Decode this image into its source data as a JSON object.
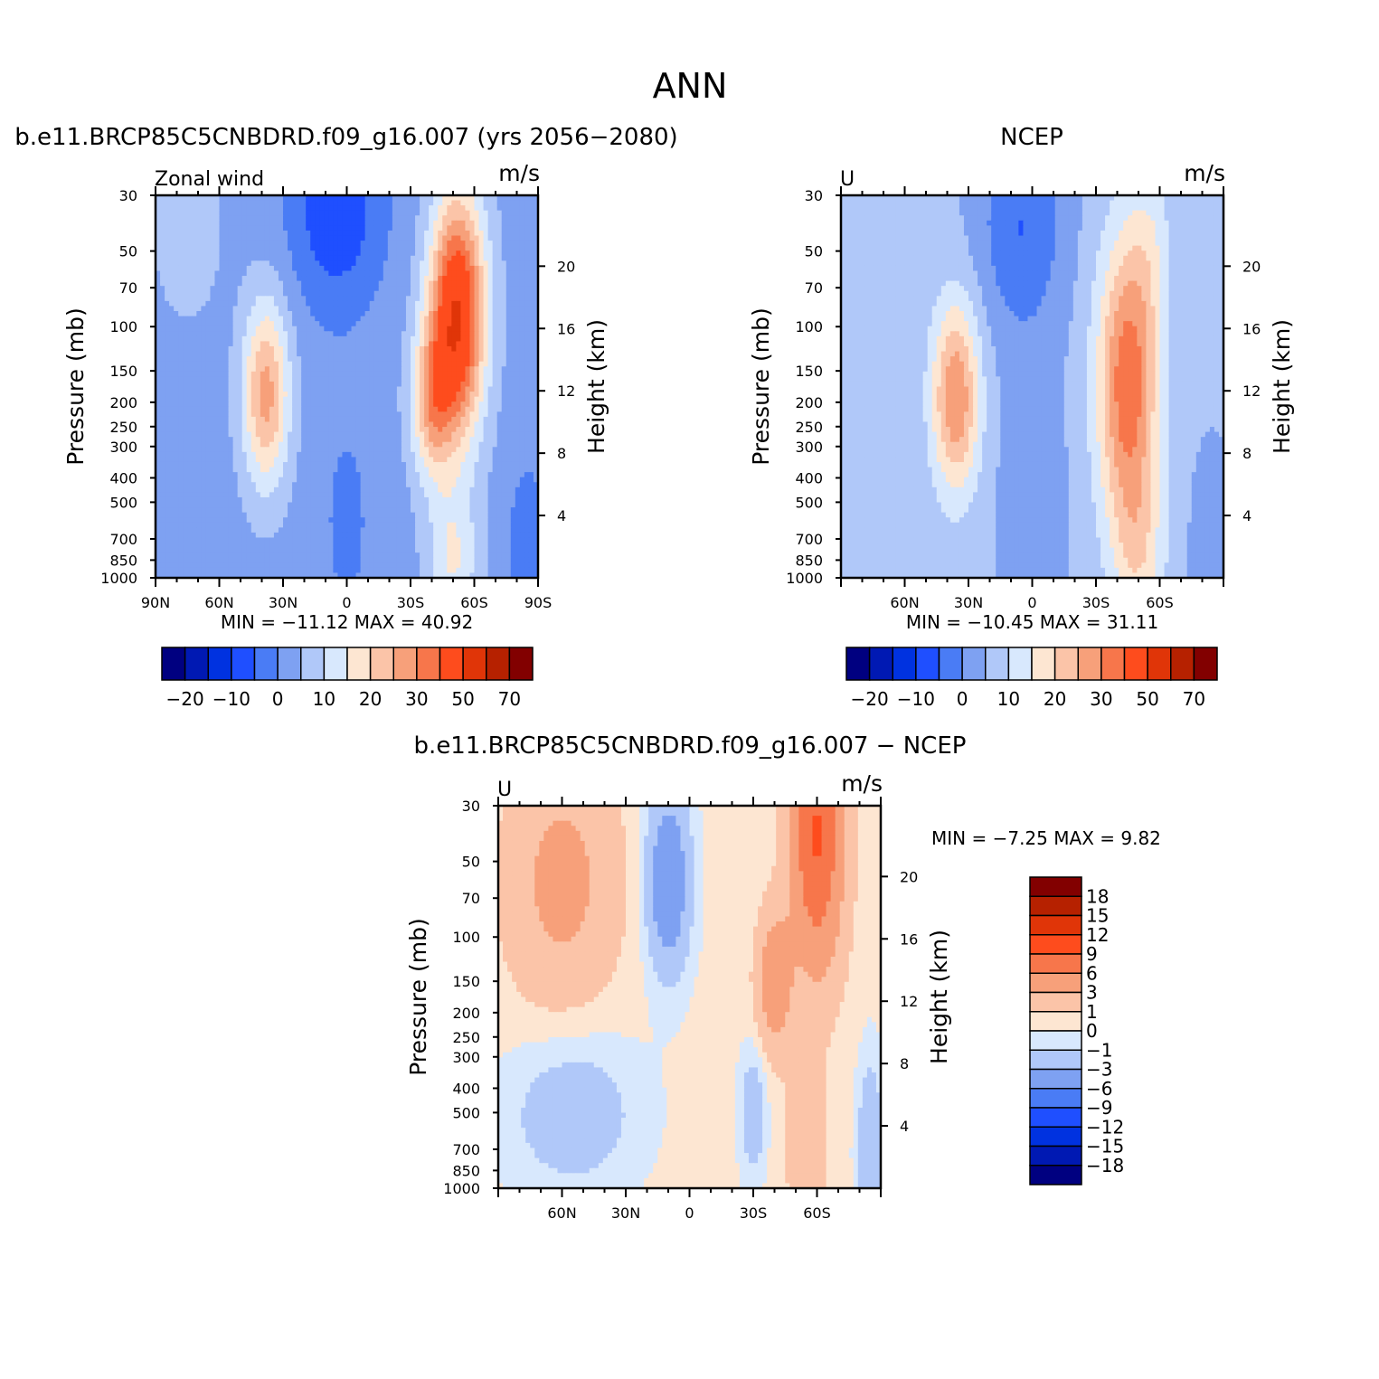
{
  "main_title": "ANN",
  "levels_mb": [
    30,
    50,
    70,
    100,
    150,
    200,
    250,
    300,
    400,
    500,
    700,
    850,
    1000
  ],
  "height_ticks_km": [
    4,
    8,
    12,
    16,
    20
  ],
  "left_axis_label": "Pressure (mb)",
  "right_axis_label": "Height (km)",
  "units": "m/s",
  "colors": {
    "abs": [
      "#000080",
      "#0019b3",
      "#0032e0",
      "#1f4fff",
      "#4a7cf5",
      "#7ea1f2",
      "#b0c8f9",
      "#d8e8fd",
      "#fde6d2",
      "#fbc4a8",
      "#f7a07a",
      "#f7764b",
      "#fe4c1d",
      "#e03508",
      "#b62100",
      "#820000"
    ],
    "diff": [
      "#000080",
      "#0019b3",
      "#0032e0",
      "#1f4fff",
      "#4a7cf5",
      "#7ea1f2",
      "#b0c8f9",
      "#d8e8fd",
      "#fde6d2",
      "#fbc4a8",
      "#f7a07a",
      "#f7764b",
      "#fe4c1d",
      "#e03508",
      "#b62100",
      "#820000"
    ]
  },
  "panels": [
    {
      "id": "model",
      "title": "b.e11.BRCP85C5CNBDRD.f09_g16.007 (yrs 2056-2080)",
      "var_label": "Zonal wind",
      "units": "m/s",
      "x_tick_labels": [
        "90N",
        "60N",
        "30N",
        "0",
        "30S",
        "60S",
        "90S"
      ],
      "min_label": "MIN =",
      "min_value": "-11.12",
      "max_label": "MAX =",
      "max_value": "40.92",
      "colorbar_labels": [
        "-20",
        "-10",
        "0",
        "10",
        "20",
        "30",
        "50",
        "70"
      ]
    },
    {
      "id": "obs",
      "title": "NCEP",
      "var_label": "U",
      "units": "m/s",
      "x_tick_labels": [
        "60N",
        "30N",
        "0",
        "30S",
        "60S"
      ],
      "min_label": "MIN =",
      "min_value": "-10.45",
      "max_label": "MAX =",
      "max_value": "31.11",
      "colorbar_labels": [
        "-20",
        "-10",
        "0",
        "10",
        "20",
        "30",
        "50",
        "70"
      ]
    },
    {
      "id": "diff",
      "title": "b.e11.BRCP85C5CNBDRD.f09_g16.007 - NCEP",
      "var_label": "U",
      "units": "m/s",
      "x_tick_labels": [
        "60N",
        "30N",
        "0",
        "30S",
        "60S"
      ],
      "min_label": "MIN =",
      "min_value": "-7.25",
      "max_label": "MAX =",
      "max_value": "9.82",
      "colorbar_labels": [
        "18",
        "15",
        "12",
        "9",
        "6",
        "3",
        "1",
        "0",
        "-1",
        "-3",
        "-6",
        "-9",
        "-12",
        "-15",
        "-18"
      ]
    }
  ],
  "chart_data": [
    {
      "type": "heatmap",
      "title": "b.e11.BRCP85C5CNBDRD.f09_g16.007 (yrs 2056-2080)",
      "variable": "Zonal wind",
      "units": "m/s",
      "x_axis": "latitude",
      "xlim": [
        90,
        -90
      ],
      "x_ticks": [
        "90N",
        "60N",
        "30N",
        "0",
        "30S",
        "60S",
        "90S"
      ],
      "y_axis": "Pressure (mb)",
      "y_scale": "log",
      "ylim": [
        1000,
        30
      ],
      "y2_axis": "Height (km)",
      "min": -11.12,
      "max": 40.92,
      "contour_levels": [
        -25,
        -20,
        -15,
        -10,
        -5,
        0,
        5,
        10,
        15,
        20,
        25,
        30,
        40,
        50,
        60,
        70
      ],
      "features": [
        {
          "desc": "Southern hemisphere jet max",
          "lat": -48,
          "p_mb": 180,
          "value": 40
        },
        {
          "desc": "Northern hemisphere jet max",
          "lat": 36,
          "p_mb": 180,
          "value": 25
        },
        {
          "desc": "Tropical easterlies aloft",
          "lat": 5,
          "p_mb": 40,
          "value": -10
        }
      ]
    },
    {
      "type": "heatmap",
      "title": "NCEP",
      "variable": "U",
      "units": "m/s",
      "xlim": [
        90,
        -90
      ],
      "x_ticks": [
        "60N",
        "30N",
        "0",
        "30S",
        "60S"
      ],
      "y_scale": "log",
      "ylim": [
        1000,
        30
      ],
      "min": -10.45,
      "max": 31.11,
      "contour_levels": [
        -25,
        -20,
        -15,
        -10,
        -5,
        0,
        5,
        10,
        15,
        20,
        25,
        30,
        40,
        50,
        60,
        70
      ],
      "features": [
        {
          "desc": "Southern hemisphere jet max",
          "lat": -45,
          "p_mb": 200,
          "value": 30
        },
        {
          "desc": "Northern hemisphere jet max",
          "lat": 36,
          "p_mb": 200,
          "value": 25
        }
      ]
    },
    {
      "type": "heatmap",
      "title": "b.e11.BRCP85C5CNBDRD.f09_g16.007 - NCEP",
      "variable": "U",
      "units": "m/s",
      "xlim": [
        90,
        -90
      ],
      "x_ticks": [
        "60N",
        "30N",
        "0",
        "30S",
        "60S"
      ],
      "y_scale": "log",
      "ylim": [
        1000,
        30
      ],
      "min": -7.25,
      "max": 9.82,
      "contour_levels": [
        -18,
        -15,
        -12,
        -9,
        -6,
        -3,
        -1,
        0,
        1,
        3,
        6,
        9,
        12,
        15,
        18
      ],
      "features": [
        {
          "desc": "Positive bias SH stratosphere",
          "lat": -60,
          "p_mb": 35,
          "value": 9
        },
        {
          "desc": "Negative bias tropical stratosphere",
          "lat": 10,
          "p_mb": 60,
          "value": -6
        }
      ]
    }
  ]
}
